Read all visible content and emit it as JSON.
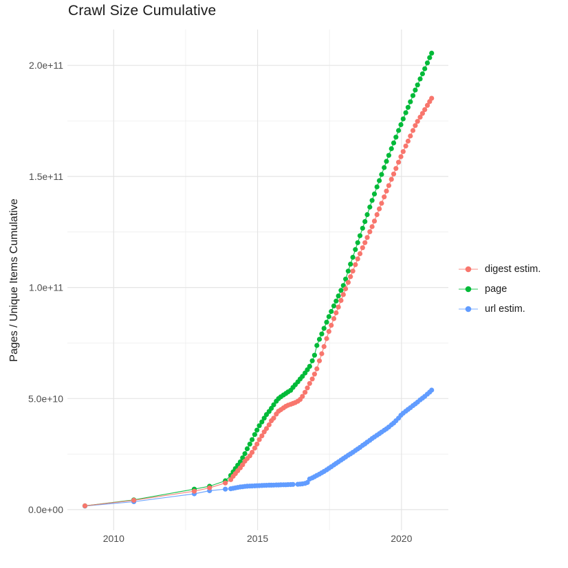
{
  "title": "Crawl Size Cumulative",
  "chart_data": {
    "type": "scatter",
    "title": "Crawl Size Cumulative",
    "xlabel": "",
    "ylabel": "Pages / Unique Items Cumulative",
    "x_tick_labels": [
      "2010",
      "2015",
      "2020"
    ],
    "x_tick_values": [
      2010,
      2015,
      2020
    ],
    "x_minor_gridlines": [
      2012.5,
      2017.5
    ],
    "y_tick_labels": [
      "0.0e+00",
      "5.0e+10",
      "1.0e+11",
      "1.5e+11",
      "2.0e+11"
    ],
    "y_tick_values": [
      0,
      50000000000,
      100000000000,
      150000000000,
      200000000000
    ],
    "y_minor_gridlines_billions": [
      25,
      75,
      125,
      175
    ],
    "xlim": [
      2008.4,
      2021.7
    ],
    "ylim_billions": [
      -4,
      216
    ],
    "grid": "major-and-minor, light gray on white",
    "legend_position": "right-center",
    "point_unit": "pages, values stored in billions (1e9)",
    "series": [
      {
        "name": "digest estim.",
        "color": "#F8766D",
        "points": [
          [
            2009.0,
            1.7
          ],
          [
            2010.7,
            4.2
          ],
          [
            2012.8,
            8.3
          ],
          [
            2013.33,
            9.8
          ],
          [
            2013.88,
            12.0
          ],
          [
            2014.07,
            13.5
          ],
          [
            2014.15,
            15.0
          ],
          [
            2014.23,
            16.2
          ],
          [
            2014.31,
            17.5
          ],
          [
            2014.4,
            18.8
          ],
          [
            2014.48,
            20.2
          ],
          [
            2014.56,
            21.8
          ],
          [
            2014.64,
            23.0
          ],
          [
            2014.73,
            24.2
          ],
          [
            2014.81,
            25.8
          ],
          [
            2014.9,
            27.7
          ],
          [
            2014.98,
            29.5
          ],
          [
            2015.06,
            31.5
          ],
          [
            2015.15,
            33.2
          ],
          [
            2015.23,
            35.0
          ],
          [
            2015.31,
            36.5
          ],
          [
            2015.4,
            38.2
          ],
          [
            2015.48,
            40.0
          ],
          [
            2015.56,
            41.2
          ],
          [
            2015.65,
            43.0
          ],
          [
            2015.73,
            44.3
          ],
          [
            2015.81,
            45.0
          ],
          [
            2015.9,
            45.8
          ],
          [
            2015.98,
            46.5
          ],
          [
            2016.06,
            47.0
          ],
          [
            2016.15,
            47.4
          ],
          [
            2016.23,
            47.8
          ],
          [
            2016.31,
            48.2
          ],
          [
            2016.4,
            48.8
          ],
          [
            2016.48,
            49.6
          ],
          [
            2016.56,
            51.0
          ],
          [
            2016.65,
            52.8
          ],
          [
            2016.73,
            54.8
          ],
          [
            2016.81,
            56.8
          ],
          [
            2016.9,
            58.8
          ],
          [
            2016.98,
            61.0
          ],
          [
            2017.06,
            63.4
          ],
          [
            2017.15,
            67.0
          ],
          [
            2017.23,
            70.2
          ],
          [
            2017.31,
            73.4
          ],
          [
            2017.4,
            77.0
          ],
          [
            2017.48,
            80.2
          ],
          [
            2017.56,
            83.0
          ],
          [
            2017.65,
            86.0
          ],
          [
            2017.73,
            88.6
          ],
          [
            2017.81,
            91.2
          ],
          [
            2017.9,
            94.2
          ],
          [
            2017.98,
            96.8
          ],
          [
            2018.06,
            99.4
          ],
          [
            2018.15,
            102.3
          ],
          [
            2018.23,
            104.9
          ],
          [
            2018.31,
            107.4
          ],
          [
            2018.4,
            110.3
          ],
          [
            2018.48,
            112.9
          ],
          [
            2018.56,
            115.2
          ],
          [
            2018.65,
            117.9
          ],
          [
            2018.73,
            120.2
          ],
          [
            2018.81,
            122.5
          ],
          [
            2018.9,
            125.1
          ],
          [
            2018.98,
            127.4
          ],
          [
            2019.06,
            129.9
          ],
          [
            2019.15,
            132.8
          ],
          [
            2019.23,
            135.4
          ],
          [
            2019.31,
            137.9
          ],
          [
            2019.4,
            140.8
          ],
          [
            2019.48,
            143.4
          ],
          [
            2019.56,
            145.9
          ],
          [
            2019.65,
            148.7
          ],
          [
            2019.73,
            151.1
          ],
          [
            2019.81,
            153.6
          ],
          [
            2019.9,
            156.4
          ],
          [
            2019.98,
            158.9
          ],
          [
            2020.06,
            161.2
          ],
          [
            2020.15,
            163.7
          ],
          [
            2020.23,
            165.9
          ],
          [
            2020.31,
            168.2
          ],
          [
            2020.4,
            170.7
          ],
          [
            2020.48,
            172.9
          ],
          [
            2020.56,
            174.8
          ],
          [
            2020.65,
            176.7
          ],
          [
            2020.73,
            178.4
          ],
          [
            2020.81,
            180.1
          ],
          [
            2020.9,
            182.0
          ],
          [
            2020.98,
            183.7
          ],
          [
            2021.05,
            185.2
          ]
        ]
      },
      {
        "name": "page",
        "color": "#00BA38",
        "points": [
          [
            2009.0,
            1.7
          ],
          [
            2010.7,
            4.4
          ],
          [
            2012.8,
            9.2
          ],
          [
            2013.33,
            10.5
          ],
          [
            2013.88,
            13.0
          ],
          [
            2014.07,
            15.4
          ],
          [
            2014.15,
            17.0
          ],
          [
            2014.23,
            18.5
          ],
          [
            2014.31,
            20.0
          ],
          [
            2014.4,
            21.5
          ],
          [
            2014.48,
            23.3
          ],
          [
            2014.56,
            25.2
          ],
          [
            2014.64,
            27.4
          ],
          [
            2014.73,
            29.5
          ],
          [
            2014.81,
            31.5
          ],
          [
            2014.9,
            33.8
          ],
          [
            2014.98,
            35.8
          ],
          [
            2015.06,
            37.8
          ],
          [
            2015.15,
            39.5
          ],
          [
            2015.23,
            41.2
          ],
          [
            2015.31,
            42.8
          ],
          [
            2015.4,
            44.2
          ],
          [
            2015.48,
            45.6
          ],
          [
            2015.56,
            47.2
          ],
          [
            2015.65,
            48.8
          ],
          [
            2015.73,
            50.0
          ],
          [
            2015.81,
            50.8
          ],
          [
            2015.9,
            51.6
          ],
          [
            2015.98,
            52.3
          ],
          [
            2016.06,
            53.0
          ],
          [
            2016.15,
            53.7
          ],
          [
            2016.23,
            55.0
          ],
          [
            2016.31,
            56.2
          ],
          [
            2016.4,
            57.5
          ],
          [
            2016.48,
            58.8
          ],
          [
            2016.56,
            60.0
          ],
          [
            2016.65,
            61.5
          ],
          [
            2016.73,
            63.0
          ],
          [
            2016.81,
            64.5
          ],
          [
            2016.9,
            67.0
          ],
          [
            2016.98,
            69.5
          ],
          [
            2017.06,
            73.9
          ],
          [
            2017.15,
            76.7
          ],
          [
            2017.23,
            79.1
          ],
          [
            2017.31,
            81.6
          ],
          [
            2017.4,
            84.4
          ],
          [
            2017.48,
            86.9
          ],
          [
            2017.56,
            89.2
          ],
          [
            2017.65,
            91.7
          ],
          [
            2017.73,
            93.9
          ],
          [
            2017.81,
            96.2
          ],
          [
            2017.9,
            98.7
          ],
          [
            2017.98,
            100.9
          ],
          [
            2018.06,
            103.8
          ],
          [
            2018.15,
            107.4
          ],
          [
            2018.23,
            110.5
          ],
          [
            2018.31,
            113.6
          ],
          [
            2018.4,
            117.1
          ],
          [
            2018.48,
            120.2
          ],
          [
            2018.56,
            123.3
          ],
          [
            2018.65,
            126.7
          ],
          [
            2018.73,
            129.7
          ],
          [
            2018.81,
            132.8
          ],
          [
            2018.9,
            136.2
          ],
          [
            2018.98,
            139.2
          ],
          [
            2019.06,
            142.1
          ],
          [
            2019.15,
            145.3
          ],
          [
            2019.23,
            148.1
          ],
          [
            2019.31,
            150.9
          ],
          [
            2019.4,
            154.0
          ],
          [
            2019.48,
            156.8
          ],
          [
            2019.56,
            159.5
          ],
          [
            2019.65,
            162.5
          ],
          [
            2019.73,
            165.1
          ],
          [
            2019.81,
            167.7
          ],
          [
            2019.9,
            170.7
          ],
          [
            2019.98,
            173.3
          ],
          [
            2020.06,
            175.9
          ],
          [
            2020.15,
            178.7
          ],
          [
            2020.23,
            181.1
          ],
          [
            2020.31,
            183.6
          ],
          [
            2020.4,
            186.4
          ],
          [
            2020.48,
            188.9
          ],
          [
            2020.56,
            191.2
          ],
          [
            2020.65,
            193.9
          ],
          [
            2020.73,
            196.2
          ],
          [
            2020.81,
            198.5
          ],
          [
            2020.9,
            201.1
          ],
          [
            2020.98,
            203.5
          ],
          [
            2021.05,
            205.5
          ]
        ]
      },
      {
        "name": "url estim.",
        "color": "#619CFF",
        "points": [
          [
            2009.0,
            1.6
          ],
          [
            2010.7,
            3.6
          ],
          [
            2012.8,
            7.1
          ],
          [
            2013.33,
            8.5
          ],
          [
            2013.88,
            9.2
          ],
          [
            2014.07,
            9.4
          ],
          [
            2014.15,
            9.6
          ],
          [
            2014.23,
            9.8
          ],
          [
            2014.31,
            10.0
          ],
          [
            2014.4,
            10.2
          ],
          [
            2014.48,
            10.3
          ],
          [
            2014.56,
            10.45
          ],
          [
            2014.64,
            10.55
          ],
          [
            2014.73,
            10.6
          ],
          [
            2014.81,
            10.65
          ],
          [
            2014.9,
            10.7
          ],
          [
            2014.98,
            10.75
          ],
          [
            2015.06,
            10.8
          ],
          [
            2015.15,
            10.85
          ],
          [
            2015.23,
            10.9
          ],
          [
            2015.31,
            10.95
          ],
          [
            2015.4,
            11.0
          ],
          [
            2015.48,
            11.0
          ],
          [
            2015.56,
            11.05
          ],
          [
            2015.65,
            11.1
          ],
          [
            2015.73,
            11.1
          ],
          [
            2015.81,
            11.15
          ],
          [
            2015.9,
            11.2
          ],
          [
            2015.98,
            11.2
          ],
          [
            2016.06,
            11.25
          ],
          [
            2016.15,
            11.3
          ],
          [
            2016.23,
            11.35
          ],
          [
            2016.4,
            11.4
          ],
          [
            2016.48,
            11.5
          ],
          [
            2016.56,
            11.6
          ],
          [
            2016.65,
            11.8
          ],
          [
            2016.73,
            12.2
          ],
          [
            2016.81,
            13.8
          ],
          [
            2016.9,
            14.3
          ],
          [
            2016.98,
            14.8
          ],
          [
            2017.06,
            15.4
          ],
          [
            2017.15,
            16.0
          ],
          [
            2017.23,
            16.6
          ],
          [
            2017.31,
            17.2
          ],
          [
            2017.4,
            17.9
          ],
          [
            2017.48,
            18.6
          ],
          [
            2017.56,
            19.3
          ],
          [
            2017.65,
            20.1
          ],
          [
            2017.73,
            20.8
          ],
          [
            2017.81,
            21.5
          ],
          [
            2017.9,
            22.3
          ],
          [
            2017.98,
            23.0
          ],
          [
            2018.06,
            23.7
          ],
          [
            2018.15,
            24.5
          ],
          [
            2018.23,
            25.1
          ],
          [
            2018.31,
            25.8
          ],
          [
            2018.4,
            26.6
          ],
          [
            2018.48,
            27.3
          ],
          [
            2018.56,
            28.0
          ],
          [
            2018.65,
            28.9
          ],
          [
            2018.73,
            29.6
          ],
          [
            2018.81,
            30.4
          ],
          [
            2018.9,
            31.2
          ],
          [
            2018.98,
            32.0
          ],
          [
            2019.06,
            32.7
          ],
          [
            2019.15,
            33.5
          ],
          [
            2019.23,
            34.2
          ],
          [
            2019.31,
            34.9
          ],
          [
            2019.4,
            35.7
          ],
          [
            2019.48,
            36.4
          ],
          [
            2019.56,
            37.2
          ],
          [
            2019.65,
            38.2
          ],
          [
            2019.73,
            39.0
          ],
          [
            2019.81,
            40.0
          ],
          [
            2019.9,
            41.2
          ],
          [
            2019.98,
            42.5
          ],
          [
            2020.06,
            43.4
          ],
          [
            2020.15,
            44.3
          ],
          [
            2020.23,
            45.1
          ],
          [
            2020.31,
            45.9
          ],
          [
            2020.4,
            46.8
          ],
          [
            2020.48,
            47.6
          ],
          [
            2020.56,
            48.4
          ],
          [
            2020.65,
            49.4
          ],
          [
            2020.73,
            50.2
          ],
          [
            2020.81,
            51.0
          ],
          [
            2020.9,
            52.0
          ],
          [
            2020.98,
            52.9
          ],
          [
            2021.05,
            53.8
          ]
        ]
      }
    ],
    "colors": {
      "digest_estim": "#F8766D",
      "page": "#00BA38",
      "url_estim": "#619CFF",
      "grid_major": "#E4E4E4",
      "grid_minor": "#EFEFEF",
      "axis_text": "#4d4d4d",
      "text": "#1a1a1a",
      "background": "#ffffff"
    }
  },
  "legend": {
    "items": [
      {
        "label": "digest estim."
      },
      {
        "label": "page"
      },
      {
        "label": "url estim."
      }
    ]
  }
}
